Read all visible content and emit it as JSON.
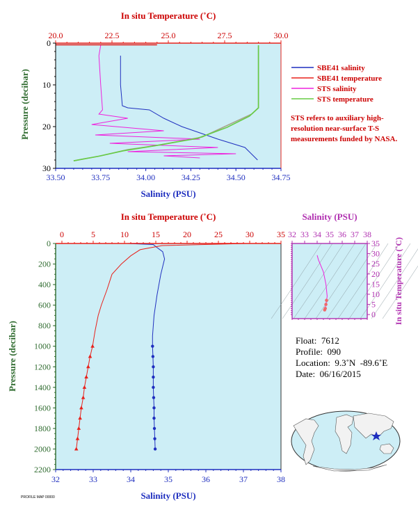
{
  "colors": {
    "panel_bg": "#cdeef6",
    "salinity": "#1f2fbf",
    "temperature": "#e8201a",
    "sts_salinity": "#ee22dd",
    "sts_temperature": "#66cc44",
    "merged": "#a5a58a",
    "axis_green": "#2f6b2f",
    "inset_axis": "#b030b0"
  },
  "chart_data": [
    {
      "type": "line",
      "name_key": "top",
      "title_top": "In situ Temperature (˚C)",
      "xlabel": "Salinity (PSU)",
      "ylabel": "Pressure (decibar)",
      "salinity_range": [
        33.5,
        34.75
      ],
      "temperature_range": [
        20.0,
        30.0
      ],
      "pressure_range": [
        0,
        30
      ],
      "salinity_ticks": [
        "33.50",
        "33.75",
        "34.00",
        "34.25",
        "34.50",
        "34.75"
      ],
      "temperature_ticks": [
        "20.0",
        "22.5",
        "25.0",
        "27.5",
        "30.0"
      ],
      "pressure_ticks": [
        "0",
        "10",
        "20",
        "30"
      ],
      "legend": [
        {
          "label": "SBE41 salinity",
          "color": "#1f2fbf"
        },
        {
          "label": "SBE41 temperature",
          "color": "#e8201a"
        },
        {
          "label": "STS salinity",
          "color": "#ee22dd"
        },
        {
          "label": "STS temperature",
          "color": "#66cc44"
        }
      ],
      "note": "STS refers to auxiliary high-resolution near-surface T-S measurements funded by NASA.",
      "series": [
        {
          "name": "SBE41 salinity",
          "points": [
            [
              33.86,
              3
            ],
            [
              33.86,
              10
            ],
            [
              33.87,
              15
            ],
            [
              33.9,
              15.5
            ],
            [
              34.02,
              16
            ],
            [
              34.1,
              18
            ],
            [
              34.2,
              20
            ],
            [
              34.3,
              21.5
            ],
            [
              34.4,
              23
            ],
            [
              34.55,
              25
            ],
            [
              34.62,
              28
            ]
          ]
        },
        {
          "name": "SBE41 temperature",
          "points": [
            [
              29.0,
              0.6
            ],
            [
              29.0,
              15.5
            ],
            [
              28.7,
              17
            ],
            [
              27.5,
              20
            ],
            [
              26.5,
              22.5
            ],
            [
              24.5,
              24.5
            ],
            [
              23.2,
              25.5
            ],
            [
              22.0,
              27
            ],
            [
              20.8,
              28.2
            ]
          ]
        },
        {
          "name": "STS salinity",
          "points": [
            [
              33.75,
              0.5
            ],
            [
              33.74,
              3
            ],
            [
              33.75,
              10
            ],
            [
              33.76,
              16
            ],
            [
              33.74,
              17
            ],
            [
              33.9,
              18
            ],
            [
              33.7,
              19.5
            ],
            [
              34.1,
              21
            ],
            [
              33.72,
              22
            ],
            [
              34.3,
              23
            ],
            [
              33.8,
              24
            ],
            [
              34.4,
              25
            ],
            [
              33.9,
              26
            ],
            [
              34.5,
              26.5
            ],
            [
              34.1,
              27
            ],
            [
              34.3,
              27.5
            ]
          ]
        },
        {
          "name": "STS temperature",
          "points": [
            [
              29.0,
              0.5
            ],
            [
              29.0,
              15.5
            ],
            [
              28.6,
              17.5
            ],
            [
              27.6,
              20.2
            ],
            [
              26.3,
              22.8
            ],
            [
              24.4,
              24.6
            ],
            [
              23.0,
              25.8
            ],
            [
              21.9,
              27.1
            ],
            [
              20.8,
              28.2
            ]
          ]
        },
        {
          "name": "surface temperature spike",
          "points": [
            [
              20.0,
              0.4
            ],
            [
              24.5,
              0.4
            ]
          ]
        }
      ]
    },
    {
      "type": "line",
      "name_key": "bottom",
      "title_top": "In situ Temperature (˚C)",
      "xlabel": "Salinity (PSU)",
      "ylabel": "Pressure (decibar)",
      "salinity_range": [
        32,
        38
      ],
      "temperature_range": [
        -1,
        35
      ],
      "pressure_range": [
        0,
        2200
      ],
      "salinity_ticks": [
        "32",
        "33",
        "34",
        "35",
        "36",
        "37",
        "38"
      ],
      "temperature_ticks": [
        "0",
        "5",
        "10",
        "15",
        "20",
        "25",
        "30",
        "35"
      ],
      "pressure_ticks": [
        "0",
        "200",
        "400",
        "600",
        "800",
        "1000",
        "1200",
        "1400",
        "1600",
        "1800",
        "2000",
        "2200"
      ],
      "series": [
        {
          "name": "salinity",
          "points": [
            [
              33.9,
              0
            ],
            [
              34.6,
              10
            ],
            [
              34.7,
              40
            ],
            [
              34.85,
              80
            ],
            [
              34.9,
              150
            ],
            [
              34.8,
              300
            ],
            [
              34.7,
              500
            ],
            [
              34.62,
              700
            ],
            [
              34.58,
              900
            ],
            [
              34.58,
              1000
            ],
            [
              34.59,
              1100
            ],
            [
              34.6,
              1200
            ],
            [
              34.6,
              1300
            ],
            [
              34.6,
              1400
            ],
            [
              34.61,
              1500
            ],
            [
              34.62,
              1600
            ],
            [
              34.62,
              1700
            ],
            [
              34.63,
              1800
            ],
            [
              34.64,
              1900
            ],
            [
              34.65,
              2000
            ]
          ]
        },
        {
          "name": "temperature",
          "points": [
            [
              29.5,
              0
            ],
            [
              16,
              20
            ],
            [
              12.5,
              60
            ],
            [
              11,
              120
            ],
            [
              9.5,
              200
            ],
            [
              8,
              300
            ],
            [
              7.2,
              450
            ],
            [
              6.3,
              600
            ],
            [
              5.8,
              700
            ],
            [
              5.3,
              850
            ],
            [
              4.9,
              1000
            ],
            [
              4.5,
              1100
            ],
            [
              4.2,
              1200
            ],
            [
              3.9,
              1300
            ],
            [
              3.6,
              1400
            ],
            [
              3.4,
              1500
            ],
            [
              3.1,
              1600
            ],
            [
              2.9,
              1700
            ],
            [
              2.7,
              1800
            ],
            [
              2.5,
              1900
            ],
            [
              2.3,
              2000
            ]
          ]
        }
      ],
      "marker_from_pressure": 1000
    },
    {
      "type": "line",
      "name_key": "inset",
      "title_top": "Salinity (PSU)",
      "ylabel": "In situ Temperature (˚C)",
      "salinity_range": [
        32,
        38
      ],
      "temperature_range": [
        -2,
        35
      ],
      "salinity_ticks": [
        "32",
        "33",
        "34",
        "35",
        "36",
        "37",
        "38"
      ],
      "temperature_ticks": [
        "0",
        "5",
        "10",
        "15",
        "20",
        "25",
        "30",
        "35"
      ],
      "series": [
        {
          "name": "T-S",
          "points": [
            [
              34.0,
              29.2
            ],
            [
              34.1,
              27
            ],
            [
              34.3,
              24
            ],
            [
              34.5,
              21
            ],
            [
              34.6,
              18
            ],
            [
              34.7,
              15
            ],
            [
              34.75,
              12
            ],
            [
              34.8,
              9
            ],
            [
              34.75,
              7
            ],
            [
              34.7,
              5
            ],
            [
              34.65,
              3
            ],
            [
              34.6,
              2.3
            ]
          ]
        }
      ]
    }
  ],
  "float_info": {
    "float": "Float:  7612",
    "profile": "Profile:  090",
    "location": "Location:  9.3˚N  -89.6˚E",
    "date": "Date:  06/16/2015"
  },
  "footer_code": "PROFILE MAP 00000"
}
